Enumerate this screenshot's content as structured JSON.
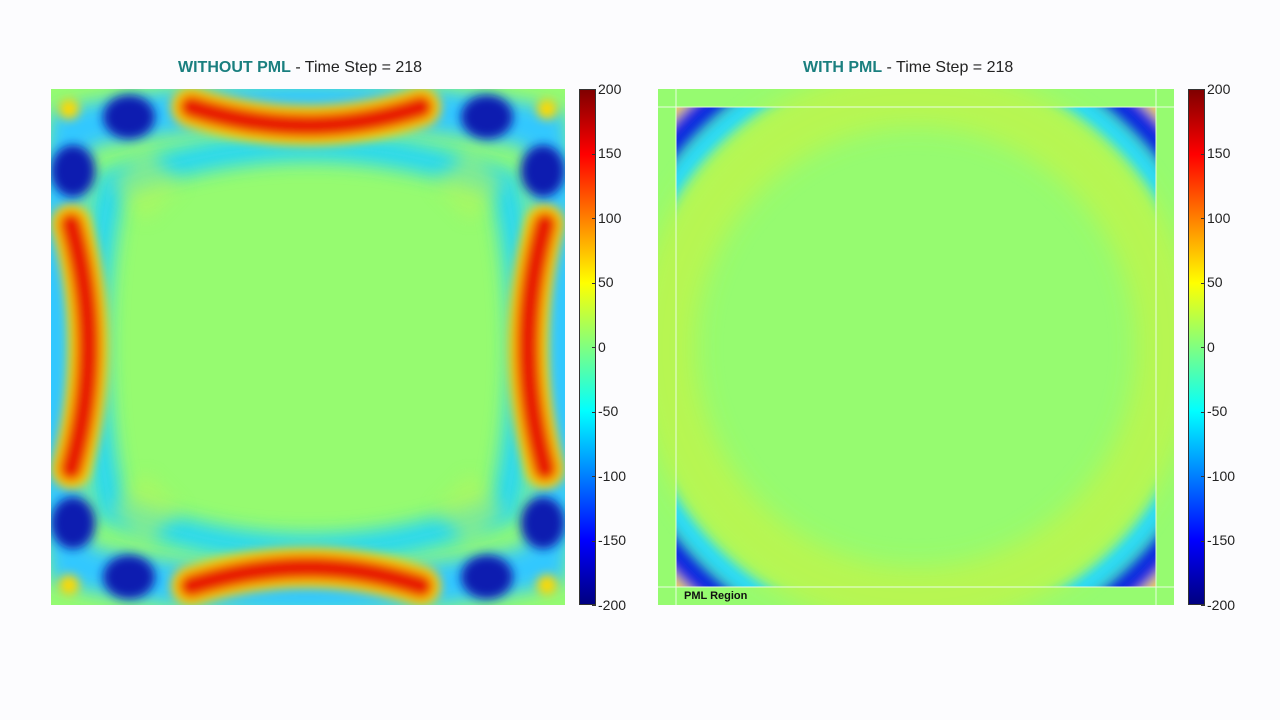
{
  "panels": [
    {
      "title_bold": "WITHOUT PML",
      "title_rest": " - Time Step = 218",
      "colorbar_ticks": [
        "200",
        "150",
        "100",
        "50",
        "0",
        "-50",
        "-100",
        "-150",
        "-200"
      ]
    },
    {
      "title_bold": "WITH PML",
      "title_rest": " - Time Step = 218",
      "colorbar_ticks": [
        "200",
        "150",
        "100",
        "50",
        "0",
        "-50",
        "-100",
        "-150",
        "-200"
      ],
      "region_label": "PML Region"
    }
  ],
  "chart_data": [
    {
      "type": "heatmap",
      "title": "WITHOUT PML - Time Step = 218",
      "colormap": "jet",
      "clim": [
        -200,
        200
      ],
      "colorbar_ticks": [
        200,
        150,
        100,
        50,
        0,
        -50,
        -100,
        -150,
        -200
      ],
      "background_value": 0,
      "features": [
        "red arcs near each edge center (~+180)",
        "blue lobes near corners (~-180)",
        "light blue inner ring (~-60)"
      ]
    },
    {
      "type": "heatmap",
      "title": "WITH PML - Time Step = 218",
      "colormap": "jet",
      "clim": [
        -200,
        200
      ],
      "colorbar_ticks": [
        200,
        150,
        100,
        50,
        0,
        -50,
        -100,
        -150,
        -200
      ],
      "background_value": 0,
      "features": [
        "blue arcs in four corners (~-180)",
        "faint yellow-green circular ring (~+25)",
        "PML boundary absorbing layer"
      ],
      "annotation": "PML Region"
    }
  ]
}
